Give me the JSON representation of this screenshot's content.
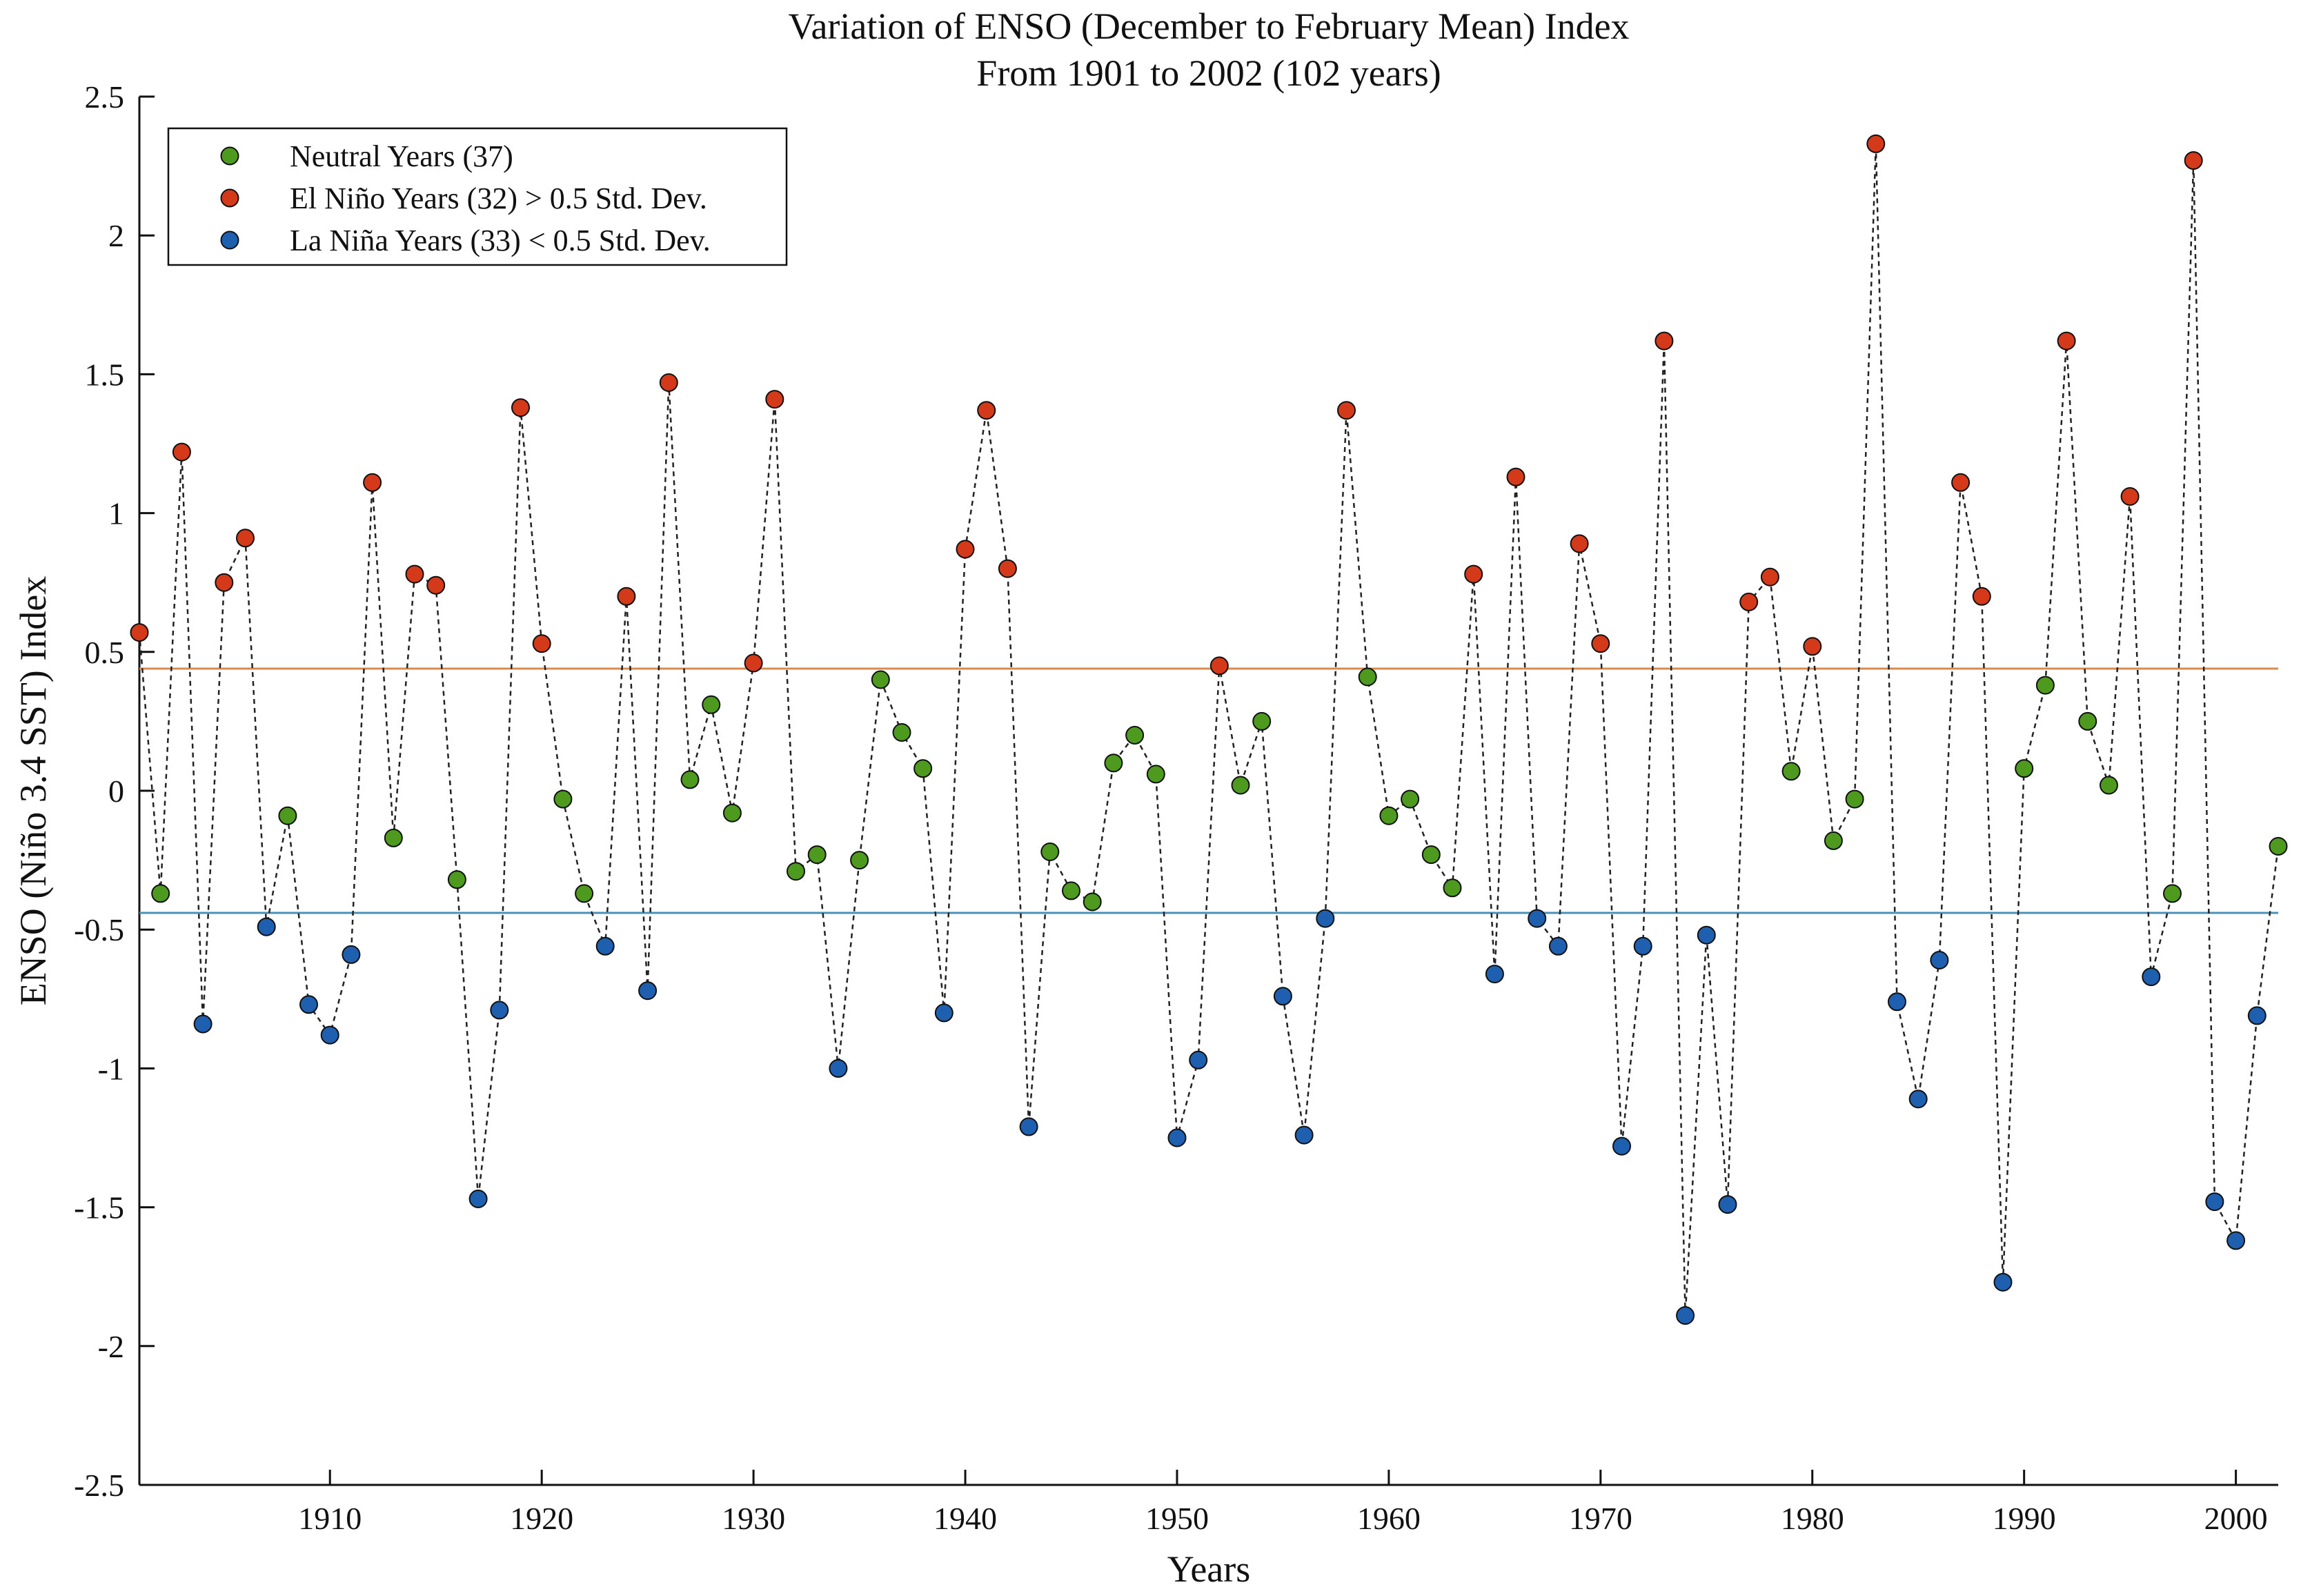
{
  "chart_data": {
    "type": "scatter",
    "title": "Variation of ENSO (December to February Mean) Index",
    "subtitle": "From 1901 to 2002 (102 years)",
    "xlabel": "Years",
    "ylabel": "ENSO (Niño 3.4 SST) Index",
    "xlim": [
      1901,
      2002
    ],
    "ylim": [
      -2.5,
      2.5
    ],
    "xticks": [
      1910,
      1920,
      1930,
      1940,
      1950,
      1960,
      1970,
      1980,
      1990,
      2000
    ],
    "xtick_labels": [
      "1910",
      "1920",
      "1930",
      "1940",
      "1950",
      "1960",
      "1970",
      "1980",
      "1990",
      "2000"
    ],
    "yticks": [
      2.5,
      2,
      1.5,
      1,
      0.5,
      0,
      -0.5,
      -1,
      -1.5,
      -2,
      -2.5
    ],
    "ytick_labels": [
      "2.5",
      "2",
      "1.5",
      "1",
      "0.5",
      "0",
      "-0.5",
      "-1",
      "-1.5",
      "-2",
      "-2.5"
    ],
    "grid": false,
    "legend_position": "top-left",
    "thresholds": [
      {
        "name": "upper-threshold",
        "value": 0.44,
        "color": "#D98A4E"
      },
      {
        "name": "lower-threshold",
        "value": -0.44,
        "color": "#4A90B8"
      }
    ],
    "connector_style": {
      "color": "#222222",
      "dash": "dashed"
    },
    "legend": [
      {
        "category": "neutral",
        "label": "Neutral Years (37)",
        "color": "#4E9A1E"
      },
      {
        "category": "elnino",
        "label": "El Niño Years (32) > 0.5 Std. Dev.",
        "color": "#D43A1A"
      },
      {
        "category": "lanina",
        "label": "La Niña Years (33) < 0.5 Std. Dev.",
        "color": "#1F5FB0"
      }
    ],
    "years": [
      1901,
      1902,
      1903,
      1904,
      1905,
      1906,
      1907,
      1908,
      1909,
      1910,
      1911,
      1912,
      1913,
      1914,
      1915,
      1916,
      1917,
      1918,
      1919,
      1920,
      1921,
      1922,
      1923,
      1924,
      1925,
      1926,
      1927,
      1928,
      1929,
      1930,
      1931,
      1932,
      1933,
      1934,
      1935,
      1936,
      1937,
      1938,
      1939,
      1940,
      1941,
      1942,
      1943,
      1944,
      1945,
      1946,
      1947,
      1948,
      1949,
      1950,
      1951,
      1952,
      1953,
      1954,
      1955,
      1956,
      1957,
      1958,
      1959,
      1960,
      1961,
      1962,
      1963,
      1964,
      1965,
      1966,
      1967,
      1968,
      1969,
      1970,
      1971,
      1972,
      1973,
      1974,
      1975,
      1976,
      1977,
      1978,
      1979,
      1980,
      1981,
      1982,
      1983,
      1984,
      1985,
      1986,
      1987,
      1988,
      1989,
      1990,
      1991,
      1992,
      1993,
      1994,
      1995,
      1996,
      1997,
      1998,
      1999,
      2000,
      2001,
      2002
    ],
    "values": [
      0.57,
      -0.37,
      1.22,
      -0.84,
      0.75,
      0.91,
      -0.49,
      -0.09,
      -0.77,
      -0.88,
      -0.59,
      1.11,
      -0.17,
      0.78,
      0.74,
      -0.32,
      -1.47,
      -0.79,
      1.38,
      0.53,
      -0.03,
      -0.37,
      -0.56,
      0.7,
      -0.72,
      1.47,
      0.04,
      0.31,
      -0.08,
      0.46,
      1.41,
      -0.29,
      -0.23,
      -1.0,
      -0.25,
      0.4,
      0.21,
      0.08,
      -0.8,
      0.87,
      1.37,
      0.8,
      -1.21,
      -0.22,
      -0.36,
      -0.4,
      0.1,
      0.2,
      0.06,
      -1.25,
      -0.97,
      0.45,
      0.02,
      0.25,
      -0.74,
      -1.24,
      -0.46,
      1.37,
      0.41,
      -0.09,
      -0.03,
      -0.23,
      -0.35,
      0.78,
      -0.66,
      1.13,
      -0.46,
      -0.56,
      0.89,
      0.53,
      -1.28,
      -0.56,
      1.62,
      -1.89,
      -0.52,
      -1.49,
      0.68,
      0.77,
      0.07,
      0.52,
      -0.18,
      -0.03,
      2.33,
      -0.76,
      -1.11,
      -0.61,
      1.11,
      0.7,
      -1.77,
      0.08,
      0.38,
      1.62,
      0.25,
      0.02,
      1.06,
      -0.67,
      -0.37,
      2.27,
      -1.48,
      -1.62,
      -0.81,
      -0.2
    ],
    "categories": [
      "elnino",
      "neutral",
      "elnino",
      "lanina",
      "elnino",
      "elnino",
      "lanina",
      "neutral",
      "lanina",
      "lanina",
      "lanina",
      "elnino",
      "neutral",
      "elnino",
      "elnino",
      "neutral",
      "lanina",
      "lanina",
      "elnino",
      "elnino",
      "neutral",
      "neutral",
      "lanina",
      "elnino",
      "lanina",
      "elnino",
      "neutral",
      "neutral",
      "neutral",
      "elnino",
      "elnino",
      "neutral",
      "neutral",
      "lanina",
      "neutral",
      "neutral",
      "neutral",
      "neutral",
      "lanina",
      "elnino",
      "elnino",
      "elnino",
      "lanina",
      "neutral",
      "neutral",
      "neutral",
      "neutral",
      "neutral",
      "neutral",
      "lanina",
      "lanina",
      "elnino",
      "neutral",
      "neutral",
      "lanina",
      "lanina",
      "lanina",
      "elnino",
      "neutral",
      "neutral",
      "neutral",
      "neutral",
      "neutral",
      "elnino",
      "lanina",
      "elnino",
      "lanina",
      "lanina",
      "elnino",
      "elnino",
      "lanina",
      "lanina",
      "elnino",
      "lanina",
      "lanina",
      "lanina",
      "elnino",
      "elnino",
      "neutral",
      "elnino",
      "neutral",
      "neutral",
      "elnino",
      "lanina",
      "lanina",
      "lanina",
      "elnino",
      "elnino",
      "lanina",
      "neutral",
      "neutral",
      "elnino",
      "neutral",
      "neutral",
      "elnino",
      "lanina",
      "neutral",
      "elnino",
      "lanina",
      "lanina",
      "lanina",
      "neutral"
    ]
  }
}
